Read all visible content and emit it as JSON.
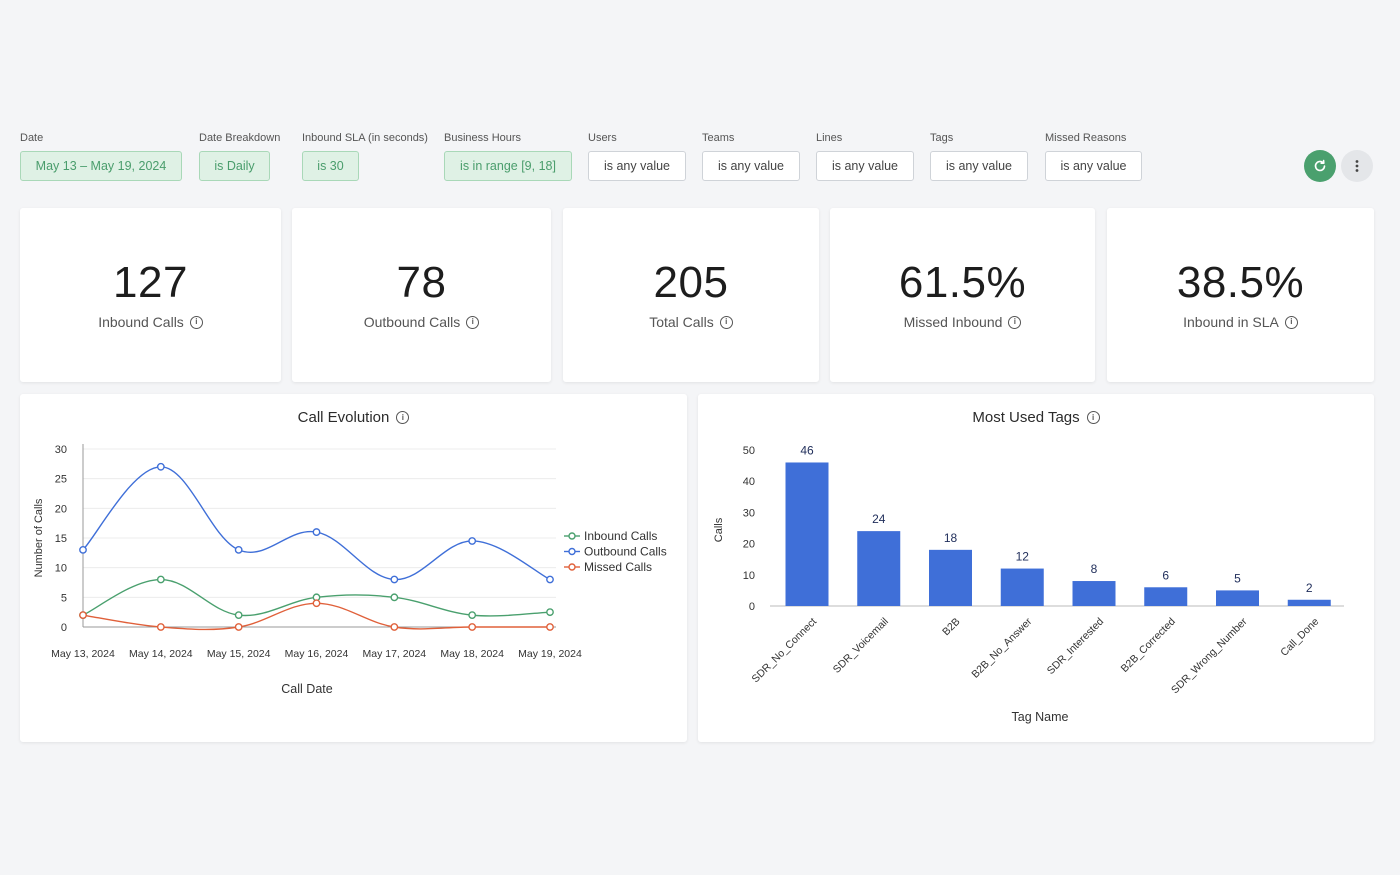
{
  "filters": [
    {
      "label": "Date",
      "value": "May 13 – May 19, 2024",
      "active": true
    },
    {
      "label": "Date Breakdown",
      "value": "is Daily",
      "active": true
    },
    {
      "label": "Inbound SLA (in seconds)",
      "value": "is 30",
      "active": true
    },
    {
      "label": "Business Hours",
      "value": "is in range [9, 18]",
      "active": true
    },
    {
      "label": "Users",
      "value": "is any value",
      "active": false
    },
    {
      "label": "Teams",
      "value": "is any value",
      "active": false
    },
    {
      "label": "Lines",
      "value": "is any value",
      "active": false
    },
    {
      "label": "Tags",
      "value": "is any value",
      "active": false
    },
    {
      "label": "Missed Reasons",
      "value": "is any value",
      "active": false
    }
  ],
  "toolbar": {
    "refresh_icon": "refresh-icon",
    "menu_icon": "more-vertical-icon",
    "accent": "#4aa06e"
  },
  "kpis": [
    {
      "value": "127",
      "label": "Inbound Calls"
    },
    {
      "value": "78",
      "label": "Outbound Calls"
    },
    {
      "value": "205",
      "label": "Total Calls"
    },
    {
      "value": "61.5%",
      "label": "Missed Inbound"
    },
    {
      "value": "38.5%",
      "label": "Inbound in SLA"
    }
  ],
  "charts": {
    "evolution_title": "Call Evolution",
    "tags_title": "Most Used Tags"
  },
  "chart_data": [
    {
      "type": "line",
      "title": "Call Evolution",
      "xlabel": "Call Date",
      "ylabel": "Number of Calls",
      "categories": [
        "May 13, 2024",
        "May 14, 2024",
        "May 15, 2024",
        "May 16, 2024",
        "May 17, 2024",
        "May 18, 2024",
        "May 19, 2024"
      ],
      "ylim": [
        0,
        30
      ],
      "yticks": [
        0,
        5,
        10,
        15,
        20,
        25,
        30
      ],
      "legend": "right",
      "series": [
        {
          "name": "Inbound Calls",
          "color": "#4aa06e",
          "values": [
            2,
            8,
            2,
            5,
            5,
            2,
            2.5
          ]
        },
        {
          "name": "Outbound Calls",
          "color": "#3f6fd8",
          "values": [
            13,
            27,
            13,
            16,
            8,
            14.5,
            8
          ]
        },
        {
          "name": "Missed Calls",
          "color": "#e0603a",
          "values": [
            2,
            0,
            0,
            4,
            0,
            0,
            0
          ]
        }
      ]
    },
    {
      "type": "bar",
      "title": "Most Used Tags",
      "xlabel": "Tag Name",
      "ylabel": "Calls",
      "categories": [
        "SDR_No_Connect",
        "SDR_Voicemail",
        "B2B",
        "B2B_No_Answer",
        "SDR_Interested",
        "B2B_Corrected",
        "SDR_Wrong_Number",
        "Call_Done"
      ],
      "values": [
        46,
        24,
        18,
        12,
        8,
        6,
        5,
        2
      ],
      "ylim": [
        0,
        50
      ],
      "yticks": [
        0,
        10,
        20,
        30,
        40,
        50
      ],
      "color": "#3f6fd8"
    }
  ]
}
